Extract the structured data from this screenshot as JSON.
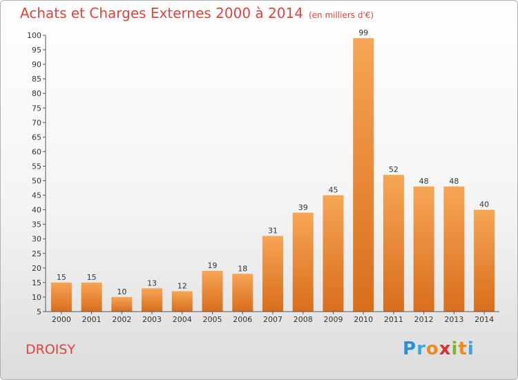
{
  "title": "Achats et Charges Externes 2000 à 2014",
  "subtitle": "(en milliers d'€)",
  "place": "DROISY",
  "brand": {
    "p": "P",
    "r": "r",
    "o": "o",
    "x": "x",
    "i1": "i",
    "t": "t",
    "i2": "i"
  },
  "colors": {
    "bar_top": "#f7a556",
    "bar_bottom": "#d86e1c",
    "title": "#e0433b"
  },
  "chart_data": {
    "type": "bar",
    "title": "Achats et Charges Externes 2000 à 2014",
    "subtitle": "(en milliers d'€)",
    "categories": [
      "2000",
      "2001",
      "2002",
      "2003",
      "2004",
      "2005",
      "2006",
      "2007",
      "2008",
      "2009",
      "2010",
      "2011",
      "2012",
      "2013",
      "2014"
    ],
    "values": [
      15,
      15,
      10,
      13,
      12,
      19,
      18,
      31,
      39,
      45,
      99,
      52,
      48,
      48,
      40
    ],
    "ylim": [
      5,
      100
    ],
    "yticks": [
      5,
      10,
      15,
      20,
      25,
      30,
      35,
      40,
      45,
      50,
      55,
      60,
      65,
      70,
      75,
      80,
      85,
      90,
      95,
      100
    ],
    "grid": false,
    "data_labels": true
  }
}
